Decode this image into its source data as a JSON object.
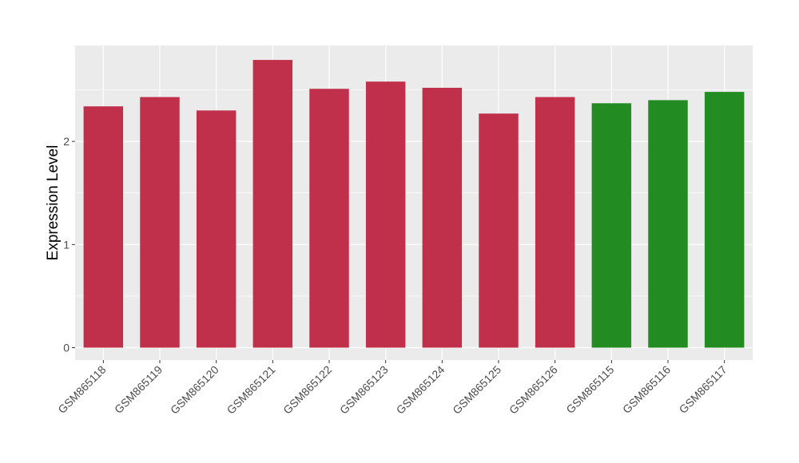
{
  "chart_data": {
    "type": "bar",
    "title": "",
    "xlabel": "",
    "ylabel": "Expression Level",
    "categories": [
      "GSM865118",
      "GSM865119",
      "GSM865120",
      "GSM865121",
      "GSM865122",
      "GSM865123",
      "GSM865124",
      "GSM865125",
      "GSM865126",
      "GSM865115",
      "GSM865116",
      "GSM865117"
    ],
    "values": [
      2.34,
      2.43,
      2.3,
      2.79,
      2.51,
      2.58,
      2.52,
      2.27,
      2.43,
      2.37,
      2.4,
      2.48
    ],
    "bar_colors": [
      "#c0304a",
      "#c0304a",
      "#c0304a",
      "#c0304a",
      "#c0304a",
      "#c0304a",
      "#c0304a",
      "#c0304a",
      "#c0304a",
      "#228b22",
      "#228b22",
      "#228b22"
    ],
    "yticks": [
      0,
      1,
      2
    ],
    "ylim": [
      -0.12,
      2.93
    ],
    "grid": true,
    "legend": "none",
    "panel_background": "#ebebeb",
    "grid_color": "#ffffff"
  }
}
